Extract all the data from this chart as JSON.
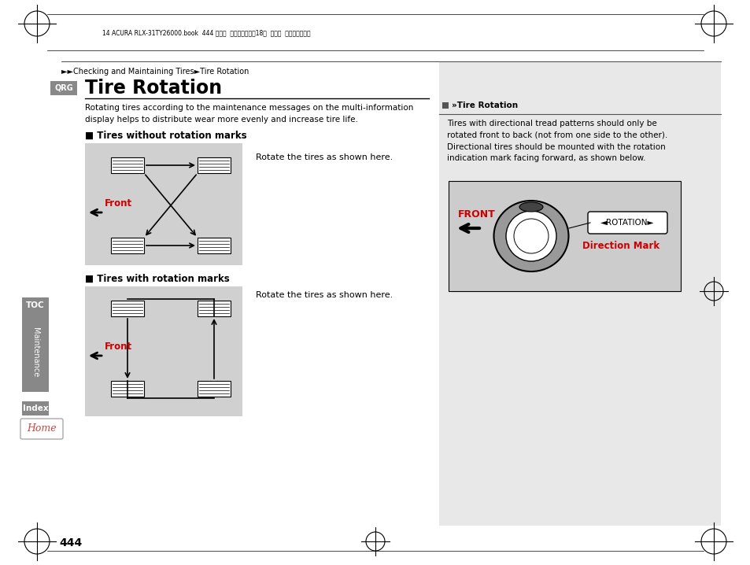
{
  "page_bg": "#ffffff",
  "header_text": "14 ACURA RLX-31TY26000.book  444 ページ  ２０１３年３月18日  月曜日  午後３時１８分",
  "breadcrumb": "►►Checking and Maintaining Tires►Tire Rotation",
  "qrg_label": "QRG",
  "title": "Tire Rotation",
  "body_text": "Rotating tires according to the maintenance messages on the multi-information\ndisplay helps to distribute wear more evenly and increase tire life.",
  "section1_title": "■ Tires without rotation marks",
  "section1_caption": "Rotate the tires as shown here.",
  "section2_title": "■ Tires with rotation marks",
  "section2_caption": "Rotate the tires as shown here.",
  "right_box_title": "»Tire Rotation",
  "right_box_body": "Tires with directional tread patterns should only be\nrotated front to back (not from one side to the other).\nDirectional tires should be mounted with the rotation\nindication mark facing forward, as shown below.",
  "toc_label": "TOC",
  "maintenance_label": "Maintenance",
  "index_label": "Index",
  "home_label": "Home",
  "page_number": "444",
  "diagram_bg": "#d0d0d0",
  "red_color": "#cc0000",
  "black_color": "#000000",
  "sidebar_bg": "#888888",
  "right_panel_bg": "#e8e8e8"
}
